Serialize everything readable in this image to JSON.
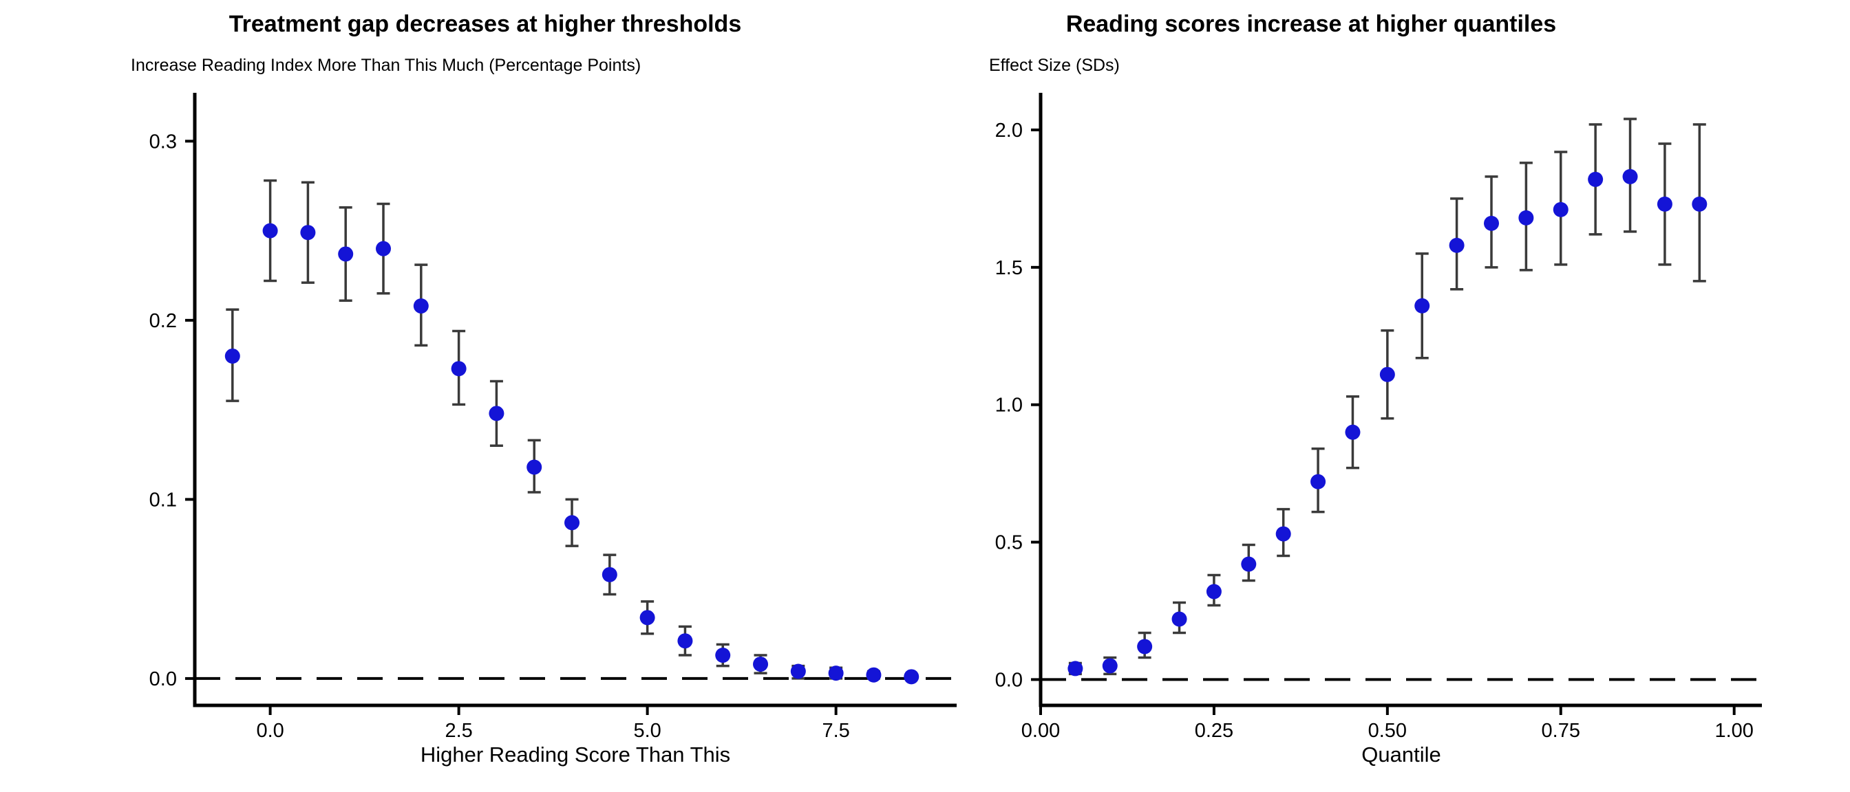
{
  "figure": {
    "background": "#ffffff",
    "point_color": "#1414d6",
    "error_bar_color": "#3a3a3a",
    "axis_color": "#000000",
    "zero_line_color": "#000000"
  },
  "chart_data": [
    {
      "type": "scatter",
      "panel": "left",
      "title": "Treatment gap decreases at higher thresholds",
      "ylabel": "Increase Reading Index More Than This Much (Percentage Points)",
      "xlabel": "Higher Reading Score Than This",
      "xlim": [
        -1.0,
        9.1
      ],
      "ylim": [
        -0.015,
        0.327
      ],
      "grid": false,
      "zero_line": true,
      "x_ticks": [
        {
          "v": 0.0,
          "label": "0.0"
        },
        {
          "v": 2.5,
          "label": "2.5"
        },
        {
          "v": 5.0,
          "label": "5.0"
        },
        {
          "v": 7.5,
          "label": "7.5"
        }
      ],
      "y_ticks": [
        {
          "v": 0.0,
          "label": "0.0"
        },
        {
          "v": 0.1,
          "label": "0.1"
        },
        {
          "v": 0.2,
          "label": "0.2"
        },
        {
          "v": 0.3,
          "label": "0.3"
        }
      ],
      "points": [
        {
          "x": -0.5,
          "y": 0.18,
          "lo": 0.155,
          "hi": 0.206
        },
        {
          "x": 0.0,
          "y": 0.25,
          "lo": 0.222,
          "hi": 0.278
        },
        {
          "x": 0.5,
          "y": 0.249,
          "lo": 0.221,
          "hi": 0.277
        },
        {
          "x": 1.0,
          "y": 0.237,
          "lo": 0.211,
          "hi": 0.263
        },
        {
          "x": 1.5,
          "y": 0.24,
          "lo": 0.215,
          "hi": 0.265
        },
        {
          "x": 2.0,
          "y": 0.208,
          "lo": 0.186,
          "hi": 0.231
        },
        {
          "x": 2.5,
          "y": 0.173,
          "lo": 0.153,
          "hi": 0.194
        },
        {
          "x": 3.0,
          "y": 0.148,
          "lo": 0.13,
          "hi": 0.166
        },
        {
          "x": 3.5,
          "y": 0.118,
          "lo": 0.104,
          "hi": 0.133
        },
        {
          "x": 4.0,
          "y": 0.087,
          "lo": 0.074,
          "hi": 0.1
        },
        {
          "x": 4.5,
          "y": 0.058,
          "lo": 0.047,
          "hi": 0.069
        },
        {
          "x": 5.0,
          "y": 0.034,
          "lo": 0.025,
          "hi": 0.043
        },
        {
          "x": 5.5,
          "y": 0.021,
          "lo": 0.013,
          "hi": 0.029
        },
        {
          "x": 6.0,
          "y": 0.013,
          "lo": 0.007,
          "hi": 0.019
        },
        {
          "x": 6.5,
          "y": 0.008,
          "lo": 0.003,
          "hi": 0.013
        },
        {
          "x": 7.0,
          "y": 0.004,
          "lo": 0.0,
          "hi": 0.007
        },
        {
          "x": 7.5,
          "y": 0.003,
          "lo": 0.0,
          "hi": 0.006
        },
        {
          "x": 8.0,
          "y": 0.002,
          "lo": 0.0,
          "hi": 0.004
        },
        {
          "x": 8.5,
          "y": 0.001,
          "lo": 0.0,
          "hi": 0.002
        }
      ]
    },
    {
      "type": "scatter",
      "panel": "right",
      "title": "Reading scores increase at higher quantiles",
      "ylabel": "Effect Size (SDs)",
      "xlabel": "Quantile",
      "xlim": [
        0.0,
        1.04
      ],
      "ylim": [
        -0.094,
        2.135
      ],
      "grid": false,
      "zero_line": true,
      "x_ticks": [
        {
          "v": 0.0,
          "label": "0.00"
        },
        {
          "v": 0.25,
          "label": "0.25"
        },
        {
          "v": 0.5,
          "label": "0.50"
        },
        {
          "v": 0.75,
          "label": "0.75"
        },
        {
          "v": 1.0,
          "label": "1.00"
        }
      ],
      "y_ticks": [
        {
          "v": 0.0,
          "label": "0.0"
        },
        {
          "v": 0.5,
          "label": "0.5"
        },
        {
          "v": 1.0,
          "label": "1.0"
        },
        {
          "v": 1.5,
          "label": "1.5"
        },
        {
          "v": 2.0,
          "label": "2.0"
        }
      ],
      "points": [
        {
          "x": 0.05,
          "y": 0.04,
          "lo": 0.02,
          "hi": 0.06
        },
        {
          "x": 0.1,
          "y": 0.05,
          "lo": 0.02,
          "hi": 0.08
        },
        {
          "x": 0.15,
          "y": 0.12,
          "lo": 0.08,
          "hi": 0.17
        },
        {
          "x": 0.2,
          "y": 0.22,
          "lo": 0.17,
          "hi": 0.28
        },
        {
          "x": 0.25,
          "y": 0.32,
          "lo": 0.27,
          "hi": 0.38
        },
        {
          "x": 0.3,
          "y": 0.42,
          "lo": 0.36,
          "hi": 0.49
        },
        {
          "x": 0.35,
          "y": 0.53,
          "lo": 0.45,
          "hi": 0.62
        },
        {
          "x": 0.4,
          "y": 0.72,
          "lo": 0.61,
          "hi": 0.84
        },
        {
          "x": 0.45,
          "y": 0.9,
          "lo": 0.77,
          "hi": 1.03
        },
        {
          "x": 0.5,
          "y": 1.11,
          "lo": 0.95,
          "hi": 1.27
        },
        {
          "x": 0.55,
          "y": 1.36,
          "lo": 1.17,
          "hi": 1.55
        },
        {
          "x": 0.6,
          "y": 1.58,
          "lo": 1.42,
          "hi": 1.75
        },
        {
          "x": 0.65,
          "y": 1.66,
          "lo": 1.5,
          "hi": 1.83
        },
        {
          "x": 0.7,
          "y": 1.68,
          "lo": 1.49,
          "hi": 1.88
        },
        {
          "x": 0.75,
          "y": 1.71,
          "lo": 1.51,
          "hi": 1.92
        },
        {
          "x": 0.8,
          "y": 1.82,
          "lo": 1.62,
          "hi": 2.02
        },
        {
          "x": 0.85,
          "y": 1.83,
          "lo": 1.63,
          "hi": 2.04
        },
        {
          "x": 0.9,
          "y": 1.73,
          "lo": 1.51,
          "hi": 1.95
        },
        {
          "x": 0.95,
          "y": 1.73,
          "lo": 1.45,
          "hi": 2.02
        }
      ]
    }
  ]
}
